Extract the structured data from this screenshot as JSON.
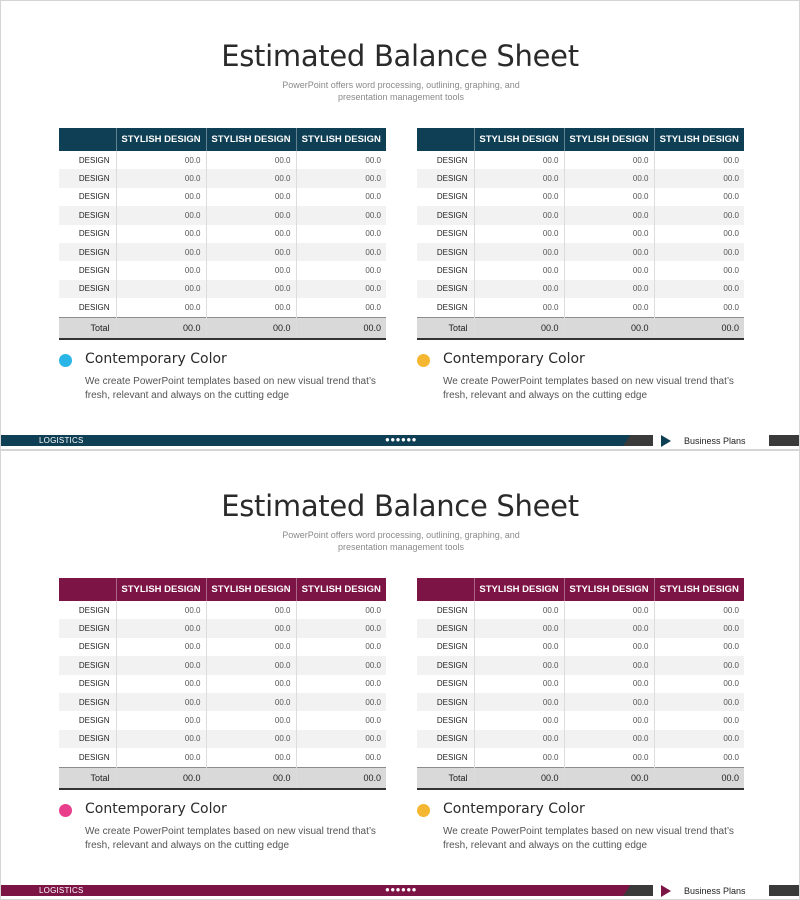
{
  "slides": [
    {
      "title": "Estimated Balance Sheet",
      "subtitle": "PowerPoint offers word processing, outlining, graphing, and presentation management  tools",
      "accent": "#0f3f55",
      "tables": [
        {
          "headers": [
            "",
            "STYLISH DESIGN",
            "STYLISH DESIGN",
            "STYLISH DESIGN"
          ],
          "rows": [
            [
              "DESIGN",
              "00.0",
              "00.0",
              "00.0"
            ],
            [
              "DESIGN",
              "00.0",
              "00.0",
              "00.0"
            ],
            [
              "DESIGN",
              "00.0",
              "00.0",
              "00.0"
            ],
            [
              "DESIGN",
              "00.0",
              "00.0",
              "00.0"
            ],
            [
              "DESIGN",
              "00.0",
              "00.0",
              "00.0"
            ],
            [
              "DESIGN",
              "00.0",
              "00.0",
              "00.0"
            ],
            [
              "DESIGN",
              "00.0",
              "00.0",
              "00.0"
            ],
            [
              "DESIGN",
              "00.0",
              "00.0",
              "00.0"
            ],
            [
              "DESIGN",
              "00.0",
              "00.0",
              "00.0"
            ]
          ],
          "total": [
            "Total",
            "00.0",
            "00.0",
            "00.0"
          ]
        },
        {
          "headers": [
            "",
            "STYLISH DESIGN",
            "STYLISH DESIGN",
            "STYLISH DESIGN"
          ],
          "rows": [
            [
              "DESIGN",
              "00.0",
              "00.0",
              "00.0"
            ],
            [
              "DESIGN",
              "00.0",
              "00.0",
              "00.0"
            ],
            [
              "DESIGN",
              "00.0",
              "00.0",
              "00.0"
            ],
            [
              "DESIGN",
              "00.0",
              "00.0",
              "00.0"
            ],
            [
              "DESIGN",
              "00.0",
              "00.0",
              "00.0"
            ],
            [
              "DESIGN",
              "00.0",
              "00.0",
              "00.0"
            ],
            [
              "DESIGN",
              "00.0",
              "00.0",
              "00.0"
            ],
            [
              "DESIGN",
              "00.0",
              "00.0",
              "00.0"
            ],
            [
              "DESIGN",
              "00.0",
              "00.0",
              "00.0"
            ]
          ],
          "total": [
            "Total",
            "00.0",
            "00.0",
            "00.0"
          ]
        }
      ],
      "features": [
        {
          "title": "Contemporary Color",
          "desc": "We create PowerPoint templates based on new visual trend that’s fresh, relevant and always on the cutting edge",
          "dot_color": "#29b6e6"
        },
        {
          "title": "Contemporary Color",
          "desc": "We create PowerPoint templates based on new visual trend that’s fresh, relevant and always on the cutting edge",
          "dot_color": "#f5b731"
        }
      ],
      "footer": {
        "label": "LOGISTICS",
        "dots": "●●●●●●",
        "right_text": "Business Plans"
      }
    },
    {
      "title": "Estimated Balance Sheet",
      "subtitle": "PowerPoint offers word processing, outlining, graphing, and presentation management  tools",
      "accent": "#7d1446",
      "tables": [
        {
          "headers": [
            "",
            "STYLISH DESIGN",
            "STYLISH DESIGN",
            "STYLISH DESIGN"
          ],
          "rows": [
            [
              "DESIGN",
              "00.0",
              "00.0",
              "00.0"
            ],
            [
              "DESIGN",
              "00.0",
              "00.0",
              "00.0"
            ],
            [
              "DESIGN",
              "00.0",
              "00.0",
              "00.0"
            ],
            [
              "DESIGN",
              "00.0",
              "00.0",
              "00.0"
            ],
            [
              "DESIGN",
              "00.0",
              "00.0",
              "00.0"
            ],
            [
              "DESIGN",
              "00.0",
              "00.0",
              "00.0"
            ],
            [
              "DESIGN",
              "00.0",
              "00.0",
              "00.0"
            ],
            [
              "DESIGN",
              "00.0",
              "00.0",
              "00.0"
            ],
            [
              "DESIGN",
              "00.0",
              "00.0",
              "00.0"
            ]
          ],
          "total": [
            "Total",
            "00.0",
            "00.0",
            "00.0"
          ]
        },
        {
          "headers": [
            "",
            "STYLISH DESIGN",
            "STYLISH DESIGN",
            "STYLISH DESIGN"
          ],
          "rows": [
            [
              "DESIGN",
              "00.0",
              "00.0",
              "00.0"
            ],
            [
              "DESIGN",
              "00.0",
              "00.0",
              "00.0"
            ],
            [
              "DESIGN",
              "00.0",
              "00.0",
              "00.0"
            ],
            [
              "DESIGN",
              "00.0",
              "00.0",
              "00.0"
            ],
            [
              "DESIGN",
              "00.0",
              "00.0",
              "00.0"
            ],
            [
              "DESIGN",
              "00.0",
              "00.0",
              "00.0"
            ],
            [
              "DESIGN",
              "00.0",
              "00.0",
              "00.0"
            ],
            [
              "DESIGN",
              "00.0",
              "00.0",
              "00.0"
            ],
            [
              "DESIGN",
              "00.0",
              "00.0",
              "00.0"
            ]
          ],
          "total": [
            "Total",
            "00.0",
            "00.0",
            "00.0"
          ]
        }
      ],
      "features": [
        {
          "title": "Contemporary Color",
          "desc": "We create PowerPoint templates based on new visual trend that’s fresh, relevant and always on the cutting edge",
          "dot_color": "#e83e8c"
        },
        {
          "title": "Contemporary Color",
          "desc": "We create PowerPoint templates based on new visual trend that’s fresh, relevant and always on the cutting edge",
          "dot_color": "#f5b731"
        }
      ],
      "footer": {
        "label": "LOGISTICS",
        "dots": "●●●●●●",
        "right_text": "Business Plans"
      }
    }
  ]
}
